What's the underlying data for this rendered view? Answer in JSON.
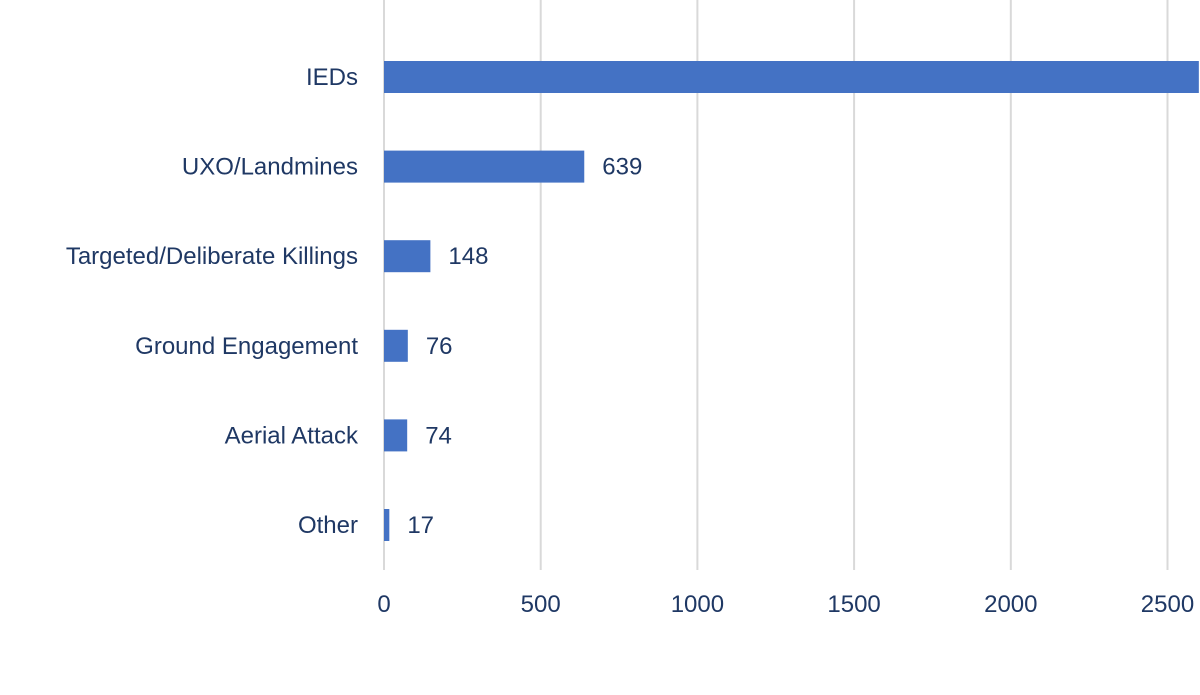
{
  "chart_data": {
    "type": "bar",
    "orientation": "horizontal",
    "title": "",
    "xlabel": "",
    "ylabel": "",
    "categories": [
      "IEDs",
      "UXO/Landmines",
      "Targeted/Deliberate Killings",
      "Ground Engagement",
      "Aerial Attack",
      "Other"
    ],
    "values": [
      2600,
      639,
      148,
      76,
      74,
      17
    ],
    "value_labels": [
      "",
      "639",
      "148",
      "76",
      "74",
      "17"
    ],
    "xlim": [
      0,
      2600
    ],
    "x_ticks": [
      0,
      500,
      1000,
      1500,
      2000,
      2500
    ],
    "x_tick_labels": [
      "0",
      "500",
      "1000",
      "1500",
      "2000",
      "2500"
    ],
    "grid": "vertical",
    "bar_color": "#4472c4",
    "text_color": "#1f3864",
    "grid_color": "#d9d9d9"
  }
}
